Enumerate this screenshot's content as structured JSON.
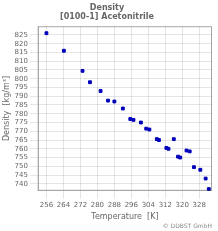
{
  "chart_data": {
    "type": "scatter",
    "title": "Density",
    "subtitle": "[0100-1] Acetonitrile",
    "x_label": "Temperature  [K]",
    "y_label": "Density  [kg/m³]",
    "annotation": "© DDBST GmbH",
    "x": [
      256.0,
      264.2,
      273.0,
      276.5,
      281.5,
      285.0,
      288.0,
      292.0,
      295.5,
      297.0,
      300.5,
      303.0,
      304.5,
      308.0,
      309.0,
      312.5,
      313.5,
      316.0,
      318.0,
      319.0,
      322.0,
      323.5,
      325.5,
      328.5,
      331.0,
      332.5
    ],
    "values": [
      826.0,
      816.0,
      804.5,
      798.0,
      793.0,
      787.5,
      787.0,
      783.0,
      777.0,
      776.5,
      775.0,
      771.5,
      771.0,
      765.5,
      765.0,
      760.5,
      760.0,
      765.5,
      755.5,
      755.0,
      759.0,
      758.5,
      749.5,
      748.0,
      743.0,
      737.0
    ],
    "color": "#0000bb",
    "marker": "square",
    "xlim": [
      252,
      334
    ],
    "ylim": [
      736,
      830
    ],
    "xticks": [
      256,
      264,
      272,
      280,
      288,
      296,
      304,
      312,
      320,
      328
    ],
    "yticks": [
      740,
      745,
      750,
      755,
      760,
      765,
      770,
      775,
      780,
      785,
      790,
      795,
      800,
      805,
      810,
      815,
      820,
      825
    ],
    "grid": true
  }
}
